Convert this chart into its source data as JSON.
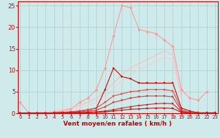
{
  "x": [
    0,
    1,
    2,
    3,
    4,
    5,
    6,
    7,
    8,
    9,
    10,
    11,
    12,
    13,
    14,
    15,
    16,
    17,
    18,
    19,
    20,
    21,
    22,
    23
  ],
  "series": [
    {
      "name": "rafales_peak",
      "color": "#ff9999",
      "linewidth": 0.8,
      "marker": "D",
      "markersize": 2.0,
      "y": [
        2.5,
        0.1,
        0.1,
        0.2,
        0.3,
        0.5,
        1.0,
        2.5,
        3.5,
        5.5,
        10.5,
        18.0,
        25.0,
        24.5,
        19.5,
        19.0,
        18.5,
        17.0,
        15.5,
        5.5,
        3.5,
        3.0,
        5.0,
        null
      ]
    },
    {
      "name": "line_ramp1",
      "color": "#ffbbbb",
      "linewidth": 0.8,
      "marker": null,
      "markersize": 0,
      "y": [
        0.0,
        0.0,
        0.1,
        0.2,
        0.4,
        0.7,
        1.2,
        1.8,
        2.5,
        3.5,
        5.0,
        7.0,
        9.0,
        10.5,
        11.5,
        12.5,
        13.5,
        14.5,
        13.5,
        4.0,
        null,
        null,
        null,
        null
      ]
    },
    {
      "name": "line_ramp2",
      "color": "#ffcccc",
      "linewidth": 0.8,
      "marker": null,
      "markersize": 0,
      "y": [
        0.0,
        0.0,
        0.0,
        0.1,
        0.2,
        0.4,
        0.7,
        1.2,
        1.8,
        2.5,
        3.8,
        5.5,
        7.5,
        9.0,
        10.0,
        11.0,
        12.0,
        13.0,
        12.5,
        3.5,
        null,
        null,
        null,
        null
      ]
    },
    {
      "name": "dark_peak",
      "color": "#cc0000",
      "linewidth": 0.8,
      "marker": "s",
      "markersize": 2.0,
      "y": [
        0.0,
        0.0,
        0.0,
        0.0,
        0.1,
        0.2,
        0.3,
        0.5,
        0.8,
        1.2,
        5.5,
        10.5,
        8.5,
        8.0,
        7.0,
        7.0,
        7.0,
        7.0,
        7.0,
        1.2,
        0.5,
        0.1,
        0.1,
        0.1
      ]
    },
    {
      "name": "med_ramp",
      "color": "#ee4444",
      "linewidth": 0.8,
      "marker": "s",
      "markersize": 2.0,
      "y": [
        0.0,
        0.0,
        0.0,
        0.0,
        0.1,
        0.2,
        0.3,
        0.5,
        0.8,
        1.2,
        2.5,
        4.0,
        4.5,
        5.0,
        5.2,
        5.5,
        5.5,
        5.5,
        5.2,
        0.8,
        0.2,
        0.1,
        0.0,
        0.0
      ]
    },
    {
      "name": "flat_low1",
      "color": "#dd3333",
      "linewidth": 0.8,
      "marker": "s",
      "markersize": 1.8,
      "y": [
        0.0,
        0.0,
        0.0,
        0.0,
        0.0,
        0.1,
        0.2,
        0.3,
        0.5,
        0.7,
        1.5,
        2.5,
        3.0,
        3.5,
        3.8,
        4.0,
        4.0,
        4.0,
        3.8,
        0.5,
        0.1,
        0.0,
        0.0,
        0.0
      ]
    },
    {
      "name": "flat_low2",
      "color": "#cc2222",
      "linewidth": 0.8,
      "marker": "s",
      "markersize": 1.8,
      "y": [
        0.0,
        0.0,
        0.0,
        0.0,
        0.0,
        0.0,
        0.1,
        0.1,
        0.2,
        0.3,
        0.5,
        0.8,
        1.2,
        1.5,
        1.8,
        2.0,
        2.2,
        2.3,
        2.2,
        0.3,
        0.0,
        0.0,
        0.0,
        0.0
      ]
    },
    {
      "name": "flat_vlow",
      "color": "#bb1111",
      "linewidth": 0.8,
      "marker": "s",
      "markersize": 1.5,
      "y": [
        0.0,
        0.0,
        0.0,
        0.0,
        0.0,
        0.0,
        0.0,
        0.1,
        0.1,
        0.2,
        0.3,
        0.5,
        0.7,
        0.9,
        1.0,
        1.1,
        1.2,
        1.2,
        1.1,
        0.2,
        0.0,
        0.0,
        0.0,
        0.0
      ]
    }
  ],
  "xlim": [
    -0.3,
    23.3
  ],
  "ylim": [
    0,
    26
  ],
  "yticks": [
    0,
    5,
    10,
    15,
    20,
    25
  ],
  "xticks": [
    0,
    1,
    2,
    3,
    4,
    5,
    6,
    7,
    8,
    9,
    10,
    11,
    12,
    13,
    14,
    15,
    16,
    17,
    18,
    19,
    20,
    21,
    22,
    23
  ],
  "xlabel": "Vent moyen/en rafales ( km/h )",
  "background_color": "#ceeaea",
  "grid_color": "#aacccc",
  "axis_color": "#cc0000",
  "tick_color": "#cc0000",
  "label_color": "#cc0000",
  "ytick_fontsize": 6,
  "xtick_fontsize": 5,
  "xlabel_fontsize": 6.5
}
